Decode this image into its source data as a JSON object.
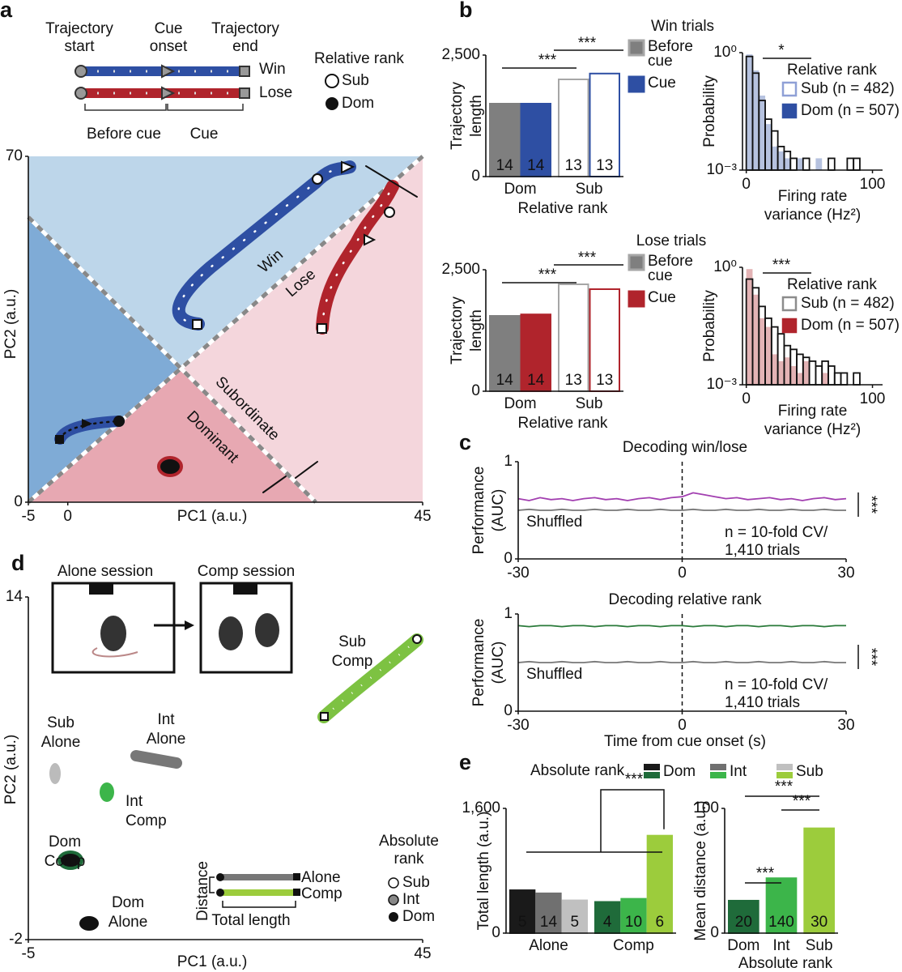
{
  "panel_labels": [
    "a",
    "b",
    "c",
    "d",
    "e"
  ],
  "a": {
    "legend": {
      "start": [
        "Trajectory",
        "start"
      ],
      "cue": [
        "Cue",
        "onset"
      ],
      "end": [
        "Trajectory",
        "end"
      ],
      "win": "Win",
      "lose": "Lose",
      "before": "Before cue",
      "cue_period": "Cue"
    },
    "rank_legend": {
      "title": "Relative rank",
      "items": [
        "Sub",
        "Dom"
      ]
    },
    "plot": {
      "xlabel": "PC1 (a.u.)",
      "ylabel": "PC2 (a.u.)",
      "xlim": [
        -5,
        45
      ],
      "xticks": [
        -5,
        0,
        45
      ],
      "ylim": [
        0,
        70
      ],
      "yticks": [
        0,
        70
      ],
      "regions": [
        "Win",
        "Lose",
        "Subordinate",
        "Dominant"
      ]
    }
  },
  "b": {
    "win": {
      "title": "Win trials",
      "bars": {
        "type": "bar",
        "ylabel": [
          "Trajectory",
          "length"
        ],
        "xlabel": "Relative rank",
        "categories": [
          "Dom",
          "Sub"
        ],
        "ylim": [
          0,
          2500
        ],
        "yticks": [
          0,
          {
            "value": 2500,
            "label": "2,500"
          }
        ],
        "filled": [
          true,
          false
        ],
        "series": [
          {
            "name": "Before cue",
            "colors": [
              "#7f7f7f",
              "#a6a6a6"
            ],
            "values": [
              1500,
              2000
            ],
            "n": [
              14,
              13
            ]
          },
          {
            "name": "Cue",
            "colors": [
              "#2e4fa3",
              "#2e4fa3"
            ],
            "values": [
              1500,
              2120
            ],
            "n": [
              14,
              13
            ]
          }
        ],
        "significance": [
          "***",
          "***"
        ]
      },
      "hist": {
        "type": "histogram",
        "ylabel": "Probability",
        "xlabel": [
          "Firing rate",
          "variance (Hz²)"
        ],
        "log_y": true,
        "xlim": [
          -3,
          108
        ],
        "xticks": [
          0,
          100
        ],
        "ylim": [
          0.001,
          1
        ],
        "yticks": [
          {
            "value": 1,
            "label": "10⁰"
          },
          {
            "value": 0.001,
            "label": "10⁻³"
          }
        ],
        "bins": [
          0,
          5,
          10,
          15,
          20,
          25,
          30,
          35,
          40,
          45,
          50,
          55,
          60,
          65,
          70,
          75,
          80,
          85,
          90,
          95,
          100
        ],
        "legend_title": "Relative rank",
        "significance": "*",
        "series": [
          {
            "name": "Dom (n = 507)",
            "color": "#2e4fa3",
            "filled": true,
            "values": [
              0.9,
              0.35,
              0.08,
              0.015,
              0.004,
              0.003,
              0.002,
              null,
              0.002,
              null,
              null,
              0.002,
              null,
              null,
              null,
              null,
              null,
              null,
              null,
              null
            ]
          },
          {
            "name": "Sub (n = 482)",
            "color": "#8fa0d6",
            "filled": false,
            "values": [
              0.8,
              0.3,
              0.06,
              0.02,
              0.01,
              0.004,
              0.003,
              0.002,
              null,
              0.002,
              null,
              null,
              null,
              0.002,
              null,
              null,
              0.002,
              0.002,
              null,
              null
            ]
          }
        ]
      }
    },
    "lose": {
      "title": "Lose trials",
      "bars": {
        "type": "bar",
        "ylabel": [
          "Trajectory",
          "length"
        ],
        "xlabel": "Relative rank",
        "categories": [
          "Dom",
          "Sub"
        ],
        "ylim": [
          0,
          2500
        ],
        "yticks": [
          0,
          {
            "value": 2500,
            "label": "2,500"
          }
        ],
        "filled": [
          true,
          false
        ],
        "series": [
          {
            "name": "Before cue",
            "colors": [
              "#7f7f7f",
              "#a6a6a6"
            ],
            "values": [
              1550,
              2200
            ],
            "n": [
              14,
              13
            ]
          },
          {
            "name": "Cue",
            "colors": [
              "#b0242c",
              "#b0242c"
            ],
            "values": [
              1580,
              2100
            ],
            "n": [
              14,
              13
            ]
          }
        ],
        "significance": [
          "***",
          "***"
        ]
      },
      "hist": {
        "type": "histogram",
        "ylabel": "Probability",
        "xlabel": [
          "Firing rate",
          "variance (Hz²)"
        ],
        "log_y": true,
        "xlim": [
          -3,
          108
        ],
        "xticks": [
          0,
          100
        ],
        "ylim": [
          0.001,
          1
        ],
        "yticks": [
          {
            "value": 1,
            "label": "10⁰"
          },
          {
            "value": 0.001,
            "label": "10⁻³"
          }
        ],
        "bins": [
          0,
          5,
          10,
          15,
          20,
          25,
          30,
          35,
          40,
          45,
          50,
          55,
          60,
          65,
          70,
          75,
          80,
          85,
          90,
          95,
          100
        ],
        "legend_title": "Relative rank",
        "significance": "***",
        "series": [
          {
            "name": "Dom (n = 507)",
            "color": "#b0242c",
            "filled": true,
            "values": [
              0.9,
              0.2,
              0.05,
              0.03,
              0.006,
              0.004,
              0.005,
              0.003,
              0.002,
              0.004,
              null,
              null,
              0.002,
              null,
              null,
              null,
              null,
              null,
              null,
              null
            ]
          },
          {
            "name": "Sub (n = 482)",
            "color": "#8c8c8c",
            "filled": false,
            "values": [
              0.5,
              0.3,
              0.1,
              0.05,
              0.03,
              0.02,
              0.01,
              0.008,
              0.006,
              0.005,
              0.004,
              0.003,
              0.004,
              0.003,
              0.002,
              0.002,
              null,
              0.002,
              null,
              null
            ]
          }
        ]
      }
    }
  },
  "c": {
    "xlabel": "Time from cue onset (s)",
    "ylabel": [
      "Performance",
      "(AUC)"
    ],
    "shuffled": "Shuffled",
    "n_text": [
      "n = 10-fold CV/",
      "1,410 trials"
    ],
    "plots": [
      {
        "type": "line",
        "title": "Decoding win/lose",
        "significance": "***",
        "xlim": [
          -30,
          30
        ],
        "xticks": [
          -30,
          0,
          30
        ],
        "ylim": [
          0,
          1
        ],
        "yticks": [
          0,
          1
        ],
        "x": [
          -30,
          -28,
          -26,
          -24,
          -22,
          -20,
          -18,
          -16,
          -14,
          -12,
          -10,
          -8,
          -6,
          -4,
          -2,
          0,
          2,
          4,
          6,
          8,
          10,
          12,
          14,
          16,
          18,
          20,
          22,
          24,
          26,
          28,
          30
        ],
        "series": [
          {
            "color": "#a23fb0",
            "values": [
              0.62,
              0.6,
              0.63,
              0.61,
              0.62,
              0.6,
              0.62,
              0.63,
              0.61,
              0.62,
              0.6,
              0.62,
              0.63,
              0.61,
              0.63,
              0.64,
              0.68,
              0.66,
              0.64,
              0.62,
              0.63,
              0.61,
              0.62,
              0.63,
              0.61,
              0.62,
              0.6,
              0.62,
              0.63,
              0.61,
              0.62
            ]
          },
          {
            "color": "#777777",
            "values": [
              0.5,
              0.51,
              0.5,
              0.5,
              0.51,
              0.5,
              0.5,
              0.51,
              0.5,
              0.5,
              0.51,
              0.5,
              0.5,
              0.51,
              0.5,
              0.5,
              0.51,
              0.5,
              0.5,
              0.51,
              0.5,
              0.5,
              0.51,
              0.5,
              0.5,
              0.51,
              0.5,
              0.5,
              0.51,
              0.5,
              0.5
            ]
          }
        ]
      },
      {
        "type": "line",
        "title": "Decoding relative rank",
        "significance": "***",
        "xlim": [
          -30,
          30
        ],
        "xticks": [
          -30,
          0,
          30
        ],
        "ylim": [
          0,
          1
        ],
        "yticks": [
          0,
          1
        ],
        "x": [
          -30,
          -28,
          -26,
          -24,
          -22,
          -20,
          -18,
          -16,
          -14,
          -12,
          -10,
          -8,
          -6,
          -4,
          -2,
          0,
          2,
          4,
          6,
          8,
          10,
          12,
          14,
          16,
          18,
          20,
          22,
          24,
          26,
          28,
          30
        ],
        "series": [
          {
            "color": "#2a7a3a",
            "values": [
              0.88,
              0.87,
              0.88,
              0.88,
              0.87,
              0.88,
              0.88,
              0.87,
              0.88,
              0.88,
              0.87,
              0.88,
              0.88,
              0.87,
              0.88,
              0.88,
              0.87,
              0.88,
              0.88,
              0.87,
              0.88,
              0.88,
              0.87,
              0.88,
              0.88,
              0.87,
              0.88,
              0.88,
              0.87,
              0.88,
              0.88
            ]
          },
          {
            "color": "#777777",
            "values": [
              0.5,
              0.51,
              0.5,
              0.5,
              0.51,
              0.5,
              0.5,
              0.51,
              0.5,
              0.5,
              0.51,
              0.5,
              0.5,
              0.51,
              0.5,
              0.5,
              0.51,
              0.5,
              0.5,
              0.51,
              0.5,
              0.5,
              0.51,
              0.5,
              0.5,
              0.51,
              0.5,
              0.5,
              0.51,
              0.5,
              0.5
            ]
          }
        ]
      }
    ]
  },
  "d": {
    "sessions": [
      "Alone session",
      "Comp session"
    ],
    "plot": {
      "xlabel": "PC1 (a.u.)",
      "ylabel": "PC2 (a.u.)",
      "xlim": [
        -5,
        45
      ],
      "xticks": [
        -5,
        45
      ],
      "ylim": [
        -2,
        14
      ],
      "yticks": [
        -2,
        14
      ]
    },
    "groups": [
      [
        "Sub",
        "Alone"
      ],
      [
        "Int",
        "Alone"
      ],
      [
        "Int",
        "Comp"
      ],
      [
        "Sub",
        "Comp"
      ],
      [
        "Dom",
        "Comp"
      ],
      [
        "Dom",
        "Alone"
      ]
    ],
    "inset": {
      "ylabel": "Distance",
      "rows": [
        "Alone",
        "Comp"
      ],
      "xlabel": "Total length"
    },
    "legend": {
      "title": [
        "Absolute",
        "rank"
      ],
      "items": [
        "Sub",
        "Int",
        "Dom"
      ]
    }
  },
  "e": {
    "legend": {
      "title": "Absolute rank",
      "items": [
        {
          "name": "Dom",
          "colors": [
            "#1a1a1a",
            "#1f6b3a"
          ]
        },
        {
          "name": "Int",
          "colors": [
            "#707070",
            "#3cb54a"
          ]
        },
        {
          "name": "Sub",
          "colors": [
            "#c0c0c0",
            "#9ccc3c"
          ]
        }
      ]
    },
    "total": {
      "type": "bar",
      "ylabel": "Total length (a.u.)",
      "categories": [
        "Alone",
        "Comp"
      ],
      "ylim": [
        0,
        1600
      ],
      "yticks": [
        0,
        {
          "value": 1600,
          "label": "1,600"
        }
      ],
      "series": [
        {
          "colors": [
            "#1a1a1a",
            "#1f6b3a"
          ],
          "values": [
            550,
            400
          ],
          "n": [
            5,
            4
          ]
        },
        {
          "colors": [
            "#707070",
            "#3cb54a"
          ],
          "values": [
            510,
            440
          ],
          "n": [
            14,
            10
          ]
        },
        {
          "colors": [
            "#c0c0c0",
            "#9ccc3c"
          ],
          "values": [
            420,
            1250
          ],
          "n": [
            5,
            6
          ]
        }
      ],
      "significance": "***"
    },
    "distance": {
      "type": "bar",
      "ylabel": "Mean distance (a.u.)",
      "xlabel": "Absolute rank",
      "categories": [
        "Dom",
        "Int",
        "Sub"
      ],
      "ylim": [
        0,
        100
      ],
      "yticks": [
        0,
        100
      ],
      "series": [
        {
          "colors": [
            "#1f6b3a",
            "#3cb54a",
            "#9ccc3c"
          ],
          "values": [
            26,
            44,
            84
          ],
          "n": [
            20,
            140,
            30
          ]
        }
      ],
      "significance": [
        "***",
        "***",
        "***"
      ]
    }
  }
}
